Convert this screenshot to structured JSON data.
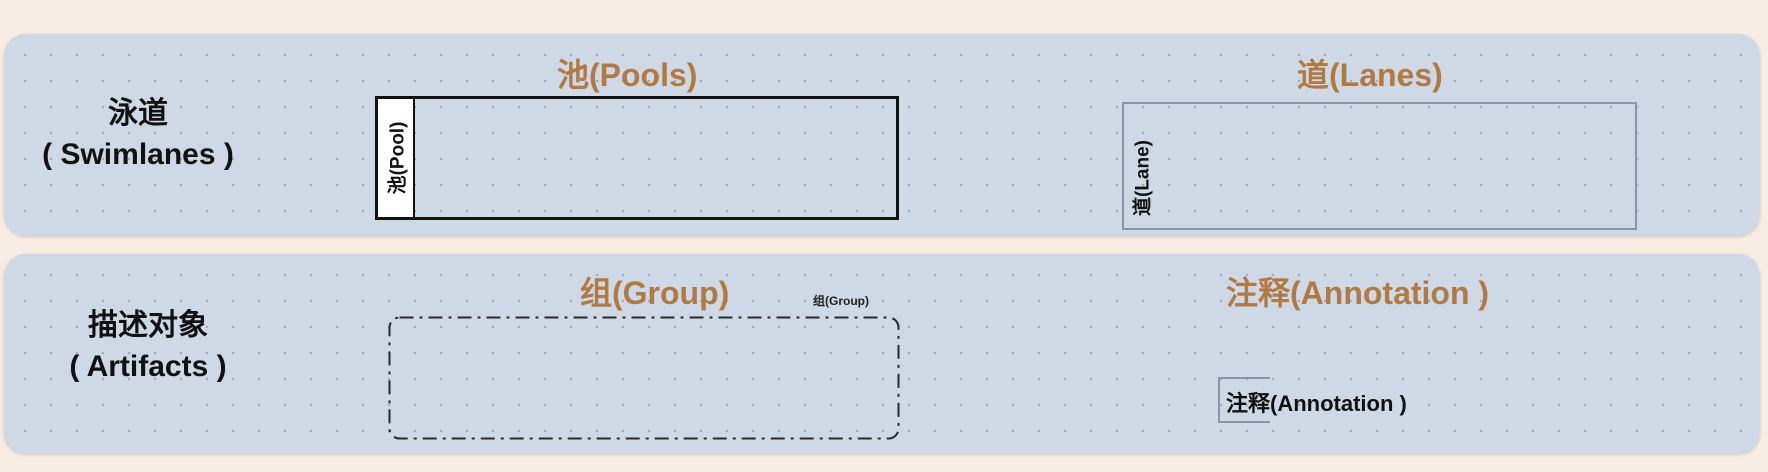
{
  "swimlanes": {
    "label_line1": "泳道",
    "label_line2": "( Swimlanes )",
    "pools": {
      "title": "池(Pools)",
      "shape_label": "池(Pool)"
    },
    "lanes": {
      "title": "道(Lanes)",
      "shape_label": "道(Lane)"
    }
  },
  "artifacts": {
    "label_line1": "描述对象",
    "label_line2": "( Artifacts )",
    "group": {
      "title": "组(Group)",
      "shape_label": "组(Group)"
    },
    "annotation": {
      "title": "注释(Annotation )",
      "shape_label": "注释(Annotation )"
    }
  },
  "colors": {
    "background": "#f7ece4",
    "panel": "#cfd9e6",
    "section_title": "#b07a45",
    "border_dark": "#111111",
    "border_light": "#8a96a8"
  }
}
